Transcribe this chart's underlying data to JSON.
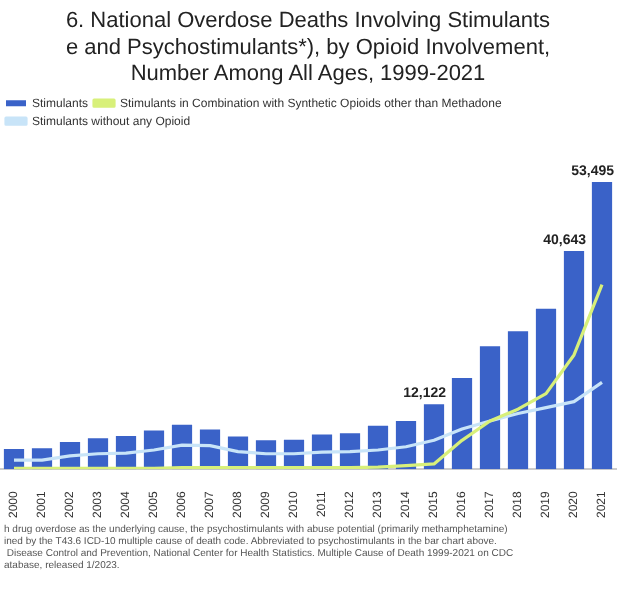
{
  "chart_data": {
    "type": "bar",
    "title": "6. National Overdose Deaths Involving Stimulants\ne and Psychostimulants*), by Opioid Involvement,\nNumber Among All Ages, 1999-2021",
    "categories": [
      "2000",
      "2001",
      "2002",
      "2003",
      "2004",
      "2005",
      "2006",
      "2007",
      "2008",
      "2009",
      "2010",
      "2011",
      "2012",
      "2013",
      "2014",
      "2015",
      "2016",
      "2017",
      "2018",
      "2019",
      "2020",
      "2021"
    ],
    "series": [
      {
        "name": "Stimulants",
        "color": "#3a62c8",
        "values": [
          3770,
          3900,
          5100,
          5800,
          6200,
          7250,
          8300,
          7400,
          6100,
          5400,
          5500,
          6500,
          6700,
          8100,
          9000,
          12122,
          17000,
          22900,
          25700,
          29900,
          40643,
          53495
        ],
        "value_labels": [
          null,
          null,
          null,
          null,
          null,
          null,
          null,
          null,
          null,
          null,
          null,
          null,
          null,
          null,
          null,
          "12,122",
          null,
          null,
          null,
          null,
          "40,643",
          "53,495"
        ]
      },
      {
        "name": "Stimulants in Combination with Synthetic Opioids other than Methadone",
        "type": "line",
        "color": "#d8f07a",
        "values": [
          200,
          200,
          200,
          200,
          200,
          200,
          300,
          300,
          300,
          300,
          300,
          300,
          300,
          400,
          700,
          1000,
          5400,
          9000,
          11200,
          14100,
          21300,
          34400
        ]
      },
      {
        "name": "Stimulants without any Opioid",
        "type": "line",
        "color": "#c8e4f8",
        "values": [
          1700,
          1700,
          2500,
          2900,
          3000,
          3600,
          4500,
          4400,
          3300,
          2900,
          2900,
          3200,
          3300,
          3600,
          4200,
          5400,
          7500,
          9000,
          10400,
          11500,
          12600,
          16200
        ]
      }
    ],
    "legend": "top left",
    "grid": false,
    "tick_labels": "x",
    "marker": "none",
    "annotations": [
      "h drug overdose as the underlying cause, the psychostimulants with abuse potential (primarily methamphetamine)\nined by the T43.6 ICD-10 multiple cause of death code. Abbreviated to psychostimulants in the bar chart above.\n Disease Control and Prevention, National Center for Health Statistics. Multiple Cause of Death 1999-2021 on CDC\natabase, released 1/2023."
    ]
  }
}
